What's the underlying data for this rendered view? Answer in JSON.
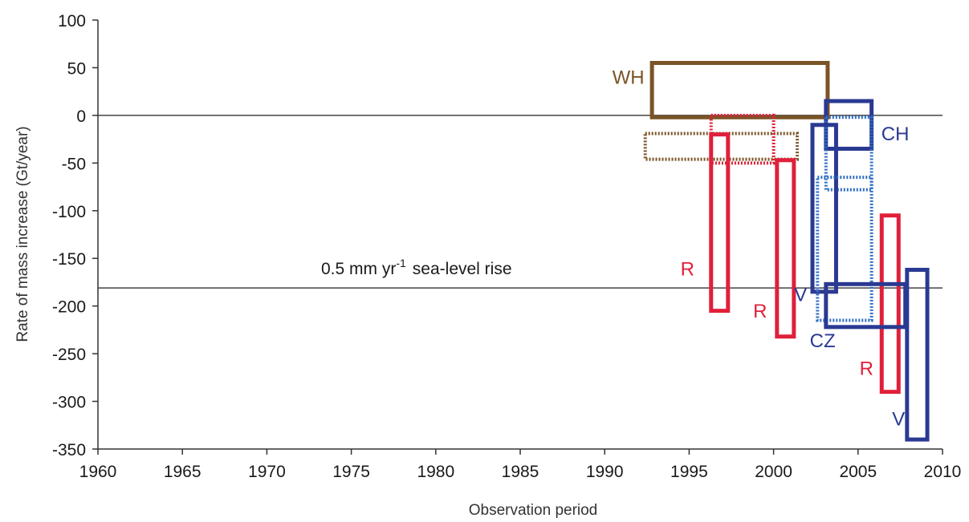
{
  "chart_data": {
    "type": "box-range",
    "title": "",
    "xlabel": "Observation period",
    "ylabel": "Rate of mass increase (Gt/year)",
    "xlim": [
      1960,
      2010
    ],
    "ylim": [
      -350,
      100
    ],
    "xticks": [
      1960,
      1965,
      1970,
      1975,
      1980,
      1985,
      1990,
      1995,
      2000,
      2005,
      2010
    ],
    "yticks": [
      100,
      50,
      0,
      -50,
      -100,
      -150,
      -200,
      -250,
      -300,
      -350
    ],
    "grid": false,
    "reference_lines": [
      {
        "y": 0,
        "label": ""
      },
      {
        "y": -181,
        "label": "0.5 mm yr",
        "label_sup": "-1",
        "label_suffix": "sea-level rise"
      }
    ],
    "colors": {
      "WH": "#7a5426",
      "R": "#e0203a",
      "V": "#2a3a92",
      "CH": "#2a3a92",
      "CZ": "#2a3a92",
      "CZ_dotted": "#2f6fc4",
      "WH_dotted": "#7a5426",
      "R_dotted": "#e0203a"
    },
    "boxes": [
      {
        "group": "WH",
        "x0": 1992.8,
        "x1": 2003.2,
        "y0": 55,
        "y1": -2,
        "style": "solid"
      },
      {
        "group": "WH",
        "x0": 1992.4,
        "x1": 2001.4,
        "y0": -19,
        "y1": -46,
        "style": "dotted"
      },
      {
        "group": "R",
        "x0": 1996.3,
        "x1": 2000.0,
        "y0": 0,
        "y1": -50,
        "style": "dotted"
      },
      {
        "group": "R",
        "x0": 1996.3,
        "x1": 1997.3,
        "y0": -20,
        "y1": -205,
        "style": "solid"
      },
      {
        "group": "R",
        "x0": 2000.2,
        "x1": 2001.2,
        "y0": -47,
        "y1": -232,
        "style": "solid"
      },
      {
        "group": "R",
        "x0": 2006.4,
        "x1": 2007.4,
        "y0": -105,
        "y1": -290,
        "style": "solid"
      },
      {
        "group": "CH",
        "x0": 2003.1,
        "x1": 2005.8,
        "y0": 15,
        "y1": -35,
        "style": "solid"
      },
      {
        "group": "CH",
        "x0": 2003.1,
        "x1": 2005.8,
        "y0": -2,
        "y1": -78,
        "style": "dotted_light"
      },
      {
        "group": "V",
        "x0": 2002.3,
        "x1": 2003.7,
        "y0": -10,
        "y1": -185,
        "style": "solid"
      },
      {
        "group": "V",
        "x0": 2007.9,
        "x1": 2009.1,
        "y0": -162,
        "y1": -340,
        "style": "solid"
      },
      {
        "group": "CZ",
        "x0": 2002.6,
        "x1": 2005.8,
        "y0": -65,
        "y1": -215,
        "style": "dotted_light"
      },
      {
        "group": "CZ",
        "x0": 2003.1,
        "x1": 2007.8,
        "y0": -177,
        "y1": -222,
        "style": "solid"
      }
    ],
    "annotations": [
      {
        "text": "WH",
        "x": 1991.4,
        "y": 33,
        "color": "#7a5426"
      },
      {
        "text": "R",
        "x": 1994.9,
        "y": -168,
        "color": "#e0203a"
      },
      {
        "text": "R",
        "x": 1999.2,
        "y": -212,
        "color": "#e0203a"
      },
      {
        "text": "R",
        "x": 2005.5,
        "y": -272,
        "color": "#e0203a"
      },
      {
        "text": "CH",
        "x": 2007.2,
        "y": -26,
        "color": "#2a3a92"
      },
      {
        "text": "V",
        "x": 2001.6,
        "y": -195,
        "color": "#2a3a92"
      },
      {
        "text": "CZ",
        "x": 2002.9,
        "y": -243,
        "color": "#2a3a92"
      },
      {
        "text": "V",
        "x": 2007.4,
        "y": -325,
        "color": "#2a3a92"
      }
    ]
  }
}
